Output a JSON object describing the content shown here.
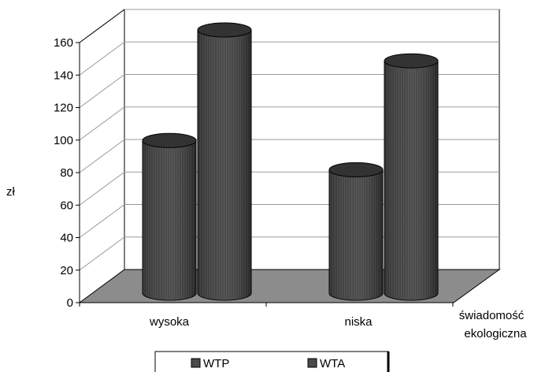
{
  "chart_data": {
    "type": "bar",
    "style": "3d-cylinder",
    "categories": [
      "wysoka",
      "niska"
    ],
    "series": [
      {
        "name": "WTP",
        "values": [
          92,
          74
        ]
      },
      {
        "name": "WTA",
        "values": [
          160,
          141
        ]
      }
    ],
    "ylabel": "zł",
    "xlabel": "świadomość ekologiczna",
    "ylim": [
      0,
      160
    ],
    "yticks": [
      0,
      20,
      40,
      60,
      80,
      100,
      120,
      140,
      160
    ],
    "grid": true,
    "legend_position": "bottom",
    "colors": {
      "bar": "#4a4a4a",
      "floor": "#8c8c8c",
      "grid": "#9a9a9a",
      "axis": "#000000"
    }
  }
}
